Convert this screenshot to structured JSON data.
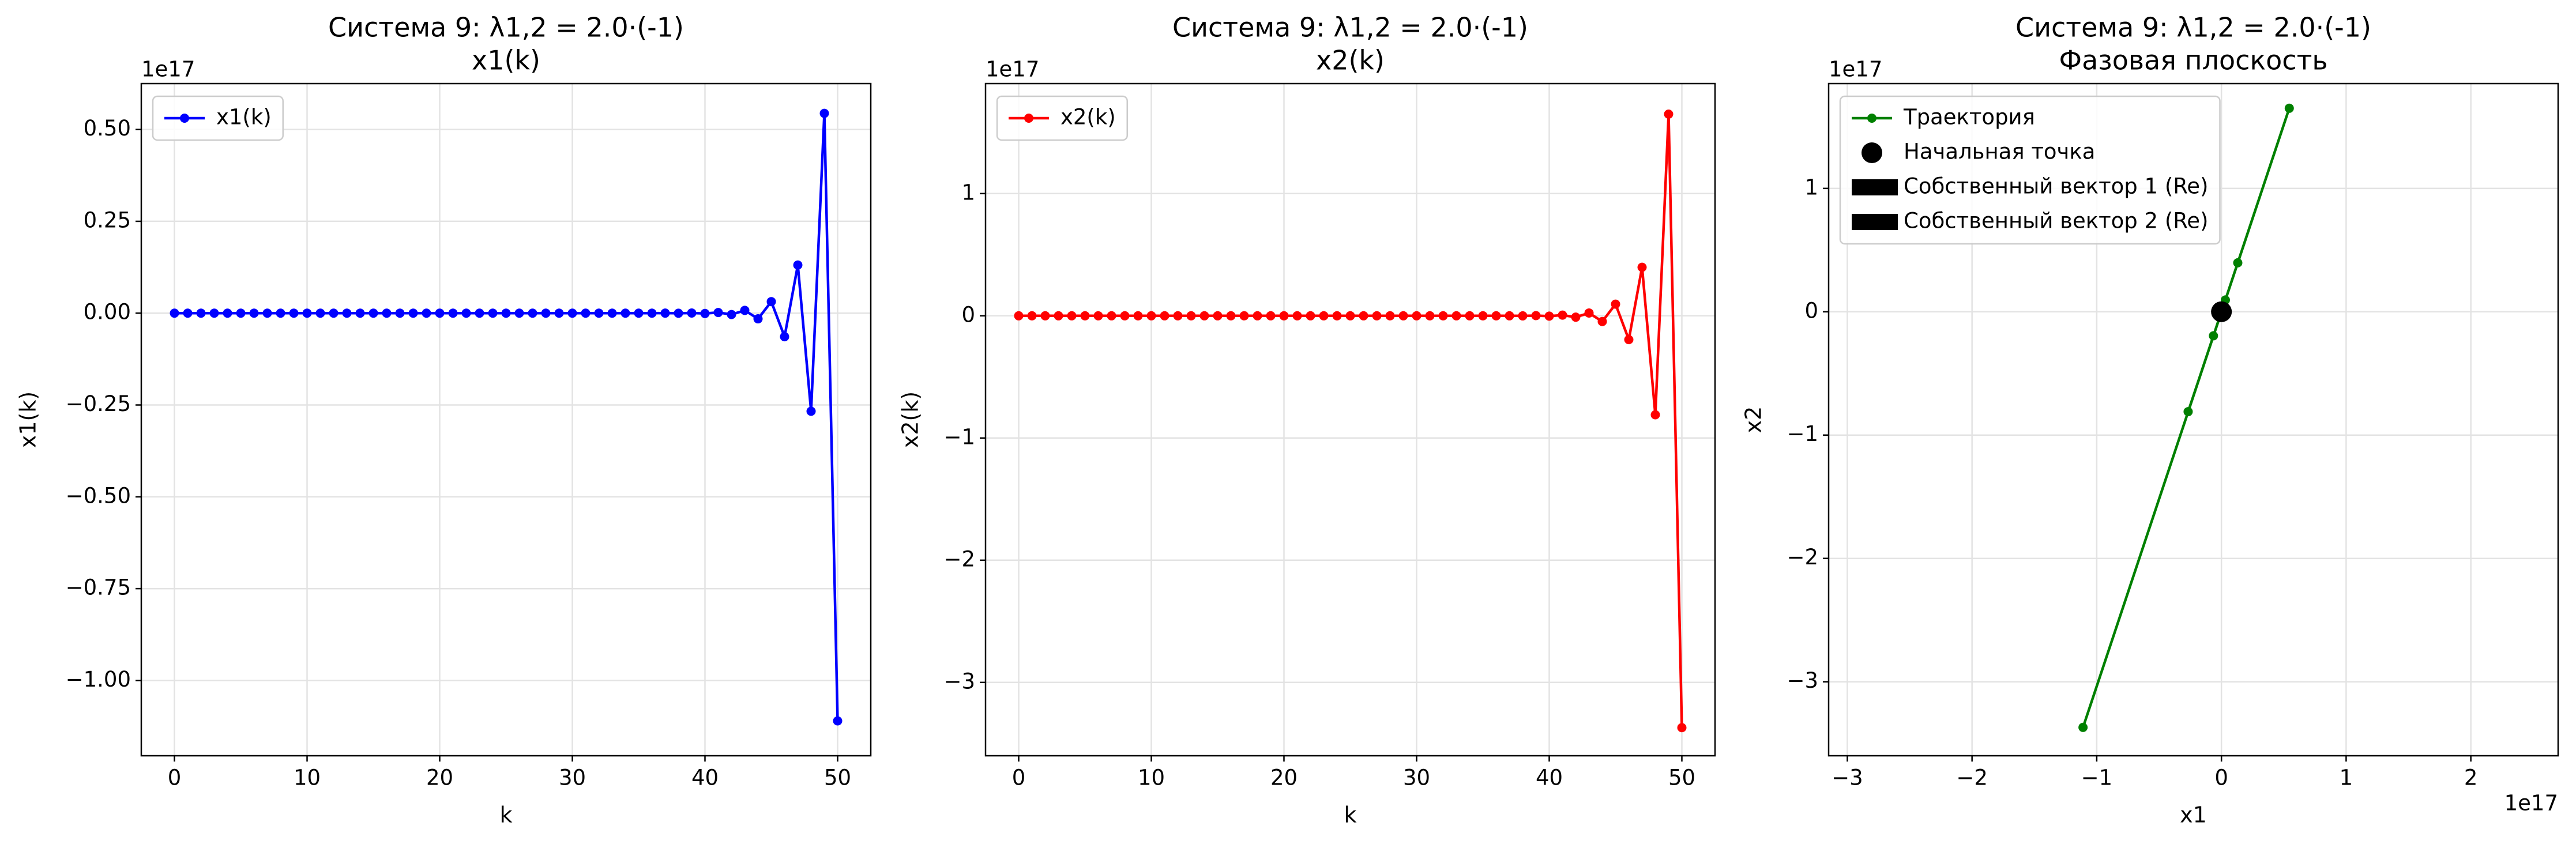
{
  "chart_data": [
    {
      "type": "line",
      "title": [
        "Система 9: λ1,2 = 2.0·(-1)",
        "x1(k)"
      ],
      "xlabel": "k",
      "ylabel": "x1(k)",
      "y_offset_label": "1e17",
      "x": [
        0,
        1,
        2,
        3,
        4,
        5,
        6,
        7,
        8,
        9,
        10,
        11,
        12,
        13,
        14,
        15,
        16,
        17,
        18,
        19,
        20,
        21,
        22,
        23,
        24,
        25,
        26,
        27,
        28,
        29,
        30,
        31,
        32,
        33,
        34,
        35,
        36,
        37,
        38,
        39,
        40,
        41,
        42,
        43,
        44,
        45,
        46,
        47,
        48,
        49,
        50
      ],
      "series": [
        {
          "name": "x1(k)",
          "color": "#0000ff",
          "values": [
            0,
            0,
            0,
            0,
            0,
            0,
            0,
            0,
            0,
            0,
            0,
            0,
            0,
            0,
            0,
            0,
            0,
            0,
            0,
            0,
            0,
            0,
            0,
            0,
            0,
            0,
            0,
            0,
            0,
            0,
            0,
            0,
            0,
            0,
            0,
            0,
            0,
            0.0001,
            -0.00021,
            0.00044,
            -0.00089,
            0.00181,
            -0.0037,
            0.00755,
            -0.0154,
            0.0314,
            -0.0641,
            0.131,
            -0.267,
            0.544,
            -1.11
          ]
        }
      ],
      "xlim": [
        -2.5,
        52.5
      ],
      "xticks": [
        0,
        10,
        20,
        30,
        40,
        50
      ],
      "ylim": [
        -1.205,
        0.625
      ],
      "yticks": [
        {
          "value": -1,
          "label": "−1.00"
        },
        {
          "value": -0.75,
          "label": "−0.75"
        },
        {
          "value": -0.5,
          "label": "−0.50"
        },
        {
          "value": -0.25,
          "label": "−0.25"
        },
        {
          "value": 0,
          "label": "0.00"
        },
        {
          "value": 0.25,
          "label": "0.25"
        },
        {
          "value": 0.5,
          "label": "0.50"
        }
      ],
      "grid": true,
      "legend": "upper-left"
    },
    {
      "type": "line",
      "title": [
        "Система 9: λ1,2 = 2.0·(-1)",
        "x2(k)"
      ],
      "xlabel": "k",
      "ylabel": "x2(k)",
      "y_offset_label": "1e17",
      "x": [
        0,
        1,
        2,
        3,
        4,
        5,
        6,
        7,
        8,
        9,
        10,
        11,
        12,
        13,
        14,
        15,
        16,
        17,
        18,
        19,
        20,
        21,
        22,
        23,
        24,
        25,
        26,
        27,
        28,
        29,
        30,
        31,
        32,
        33,
        34,
        35,
        36,
        37,
        38,
        39,
        40,
        41,
        42,
        43,
        44,
        45,
        46,
        47,
        48,
        49,
        50
      ],
      "series": [
        {
          "name": "x2(k)",
          "color": "#ff0000",
          "values": [
            0,
            0,
            0,
            0,
            0,
            0,
            0,
            0,
            0,
            0,
            0,
            0,
            0,
            0,
            0,
            0,
            0,
            0,
            0,
            0,
            0,
            0,
            0,
            0,
            0,
            0,
            0,
            0,
            0,
            0,
            0,
            0,
            0,
            0,
            0,
            0,
            0,
            0,
            -0.0006,
            0.0013,
            -0.0027,
            0.0055,
            -0.0112,
            0.0229,
            -0.0467,
            0.0953,
            -0.195,
            0.397,
            -0.81,
            1.65,
            -3.37
          ]
        }
      ],
      "xlim": [
        -2.5,
        52.5
      ],
      "xticks": [
        0,
        10,
        20,
        30,
        40,
        50
      ],
      "ylim": [
        -3.6,
        1.9
      ],
      "yticks": [
        {
          "value": -3,
          "label": "−3"
        },
        {
          "value": -2,
          "label": "−2"
        },
        {
          "value": -1,
          "label": "−1"
        },
        0,
        1
      ],
      "grid": true,
      "legend": "upper-left"
    },
    {
      "type": "line",
      "title": [
        "Система 9: λ1,2 = 2.0·(-1)",
        "Фазовая плоскость"
      ],
      "xlabel": "x1",
      "ylabel": "x2",
      "y_offset_label": "1e17",
      "x_offset_label": "1e17",
      "x": [
        0,
        0,
        0,
        0,
        0,
        0,
        0,
        0,
        0,
        0,
        0,
        0,
        0,
        0,
        0,
        0,
        0,
        0,
        0,
        0,
        0,
        0,
        0,
        0,
        0,
        0,
        0,
        0,
        0,
        0,
        0,
        0,
        0,
        0,
        0,
        0,
        0,
        0.0001,
        -0.00021,
        0.00044,
        -0.00089,
        0.00181,
        -0.0037,
        0.00755,
        -0.0154,
        0.0314,
        -0.0641,
        0.131,
        -0.267,
        0.544,
        -1.11
      ],
      "series": [
        {
          "name": "Траектория",
          "color": "#008000",
          "values": [
            0,
            0,
            0,
            0,
            0,
            0,
            0,
            0,
            0,
            0,
            0,
            0,
            0,
            0,
            0,
            0,
            0,
            0,
            0,
            0,
            0,
            0,
            0,
            0,
            0,
            0,
            0,
            0,
            0,
            0,
            0,
            0,
            0,
            0,
            0,
            0,
            0,
            0,
            -0.0006,
            0.0013,
            -0.0027,
            0.0055,
            -0.0112,
            0.0229,
            -0.0467,
            0.0953,
            -0.195,
            0.397,
            -0.81,
            1.65,
            -3.37
          ]
        }
      ],
      "initial_point": {
        "name": "Начальная точка",
        "color": "#000000",
        "x": 0,
        "y": 0
      },
      "legend_extra": [
        {
          "name": "Собственный вектор 1 (Re)",
          "color": "#000000"
        },
        {
          "name": "Собственный вектор 2 (Re)",
          "color": "#000000"
        }
      ],
      "xlim": [
        -3.15,
        2.7
      ],
      "xticks": [
        {
          "value": -3,
          "label": "−3"
        },
        {
          "value": -2,
          "label": "−2"
        },
        {
          "value": -1,
          "label": "−1"
        },
        0,
        1,
        2
      ],
      "ylim": [
        -3.6,
        1.85
      ],
      "yticks": [
        {
          "value": -3,
          "label": "−3"
        },
        {
          "value": -2,
          "label": "−2"
        },
        {
          "value": -1,
          "label": "−1"
        },
        0,
        1
      ],
      "grid": true,
      "legend": "upper-left"
    }
  ]
}
